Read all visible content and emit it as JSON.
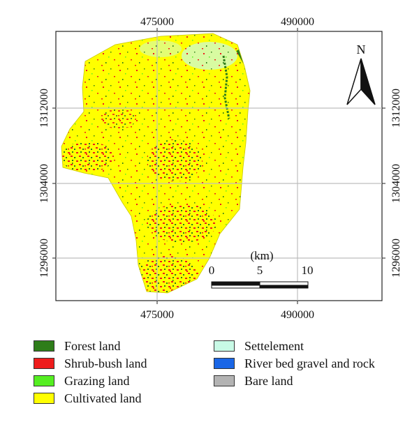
{
  "map": {
    "x_ticks": [
      "475000",
      "490000"
    ],
    "y_ticks": [
      "1312000",
      "1304000",
      "1296000"
    ],
    "north_label": "N",
    "scale": {
      "unit_label": "(km)",
      "ticks": [
        "0",
        "5",
        "10"
      ]
    }
  },
  "legend": {
    "items": [
      {
        "label": "Forest land",
        "color": "#2e7d1a"
      },
      {
        "label": "Shrub-bush land",
        "color": "#ee1c1c"
      },
      {
        "label": "Grazing land",
        "color": "#55ee22"
      },
      {
        "label": "Cultivated land",
        "color": "#ffff00"
      },
      {
        "label": "Settelement",
        "color": "#c8fae6"
      },
      {
        "label": "River bed gravel and rock",
        "color": "#1a66e6"
      },
      {
        "label": "Bare land",
        "color": "#b3b3b3"
      }
    ]
  }
}
